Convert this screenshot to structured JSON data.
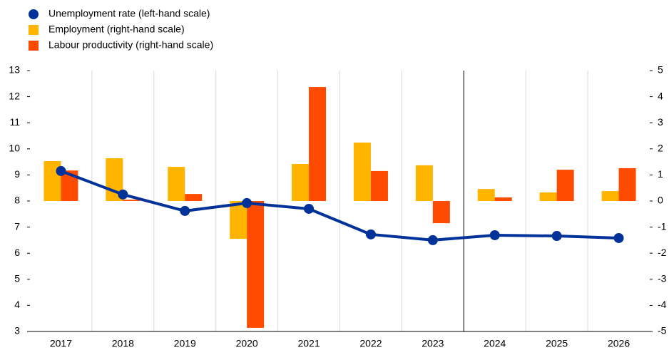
{
  "chart_data": {
    "type": "bar-line",
    "categories": [
      "2017",
      "2018",
      "2019",
      "2020",
      "2021",
      "2022",
      "2023",
      "2024",
      "2025",
      "2026"
    ],
    "series": [
      {
        "name": "Unemployment rate (left-hand scale)",
        "type": "line",
        "color": "#003299",
        "axis": "y",
        "values": [
          9.15,
          8.25,
          7.62,
          7.92,
          7.7,
          6.72,
          6.5,
          6.69,
          6.66,
          6.58
        ]
      },
      {
        "name": "Employment (right-hand scale)",
        "type": "bar",
        "color": "#ffb400",
        "axis": "y2",
        "values": [
          1.53,
          1.64,
          1.31,
          -1.45,
          1.42,
          2.24,
          1.37,
          0.46,
          0.33,
          0.38
        ]
      },
      {
        "name": "Labour productivity (right-hand scale)",
        "type": "bar",
        "color": "#ff4b00",
        "axis": "y2",
        "values": [
          1.17,
          0.05,
          0.27,
          -4.86,
          4.37,
          1.15,
          -0.85,
          0.14,
          1.2,
          1.26
        ]
      }
    ],
    "ylim": [
      3,
      13
    ],
    "yticks": [
      3,
      4,
      5,
      6,
      7,
      8,
      9,
      10,
      11,
      12,
      13
    ],
    "y2lim": [
      -5,
      5
    ],
    "y2ticks": [
      -5,
      -4,
      -3,
      -2,
      -1,
      0,
      1,
      2,
      3,
      4,
      5
    ],
    "grid": false
  }
}
